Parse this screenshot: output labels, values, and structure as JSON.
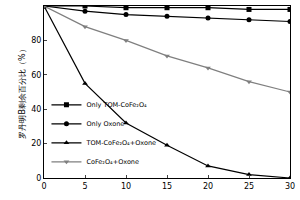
{
  "chart_data": {
    "type": "line",
    "y_label": "罗丹明B剩余百分比（%）",
    "x": [
      0,
      5,
      10,
      15,
      20,
      25,
      30
    ],
    "xlim": [
      0,
      30
    ],
    "xticks": [
      0,
      5,
      10,
      15,
      20,
      25,
      30
    ],
    "ylim": [
      0,
      100
    ],
    "yticks": [
      0,
      20,
      40,
      60,
      80
    ],
    "grid": false,
    "legend": "lower left",
    "series": [
      {
        "name": "Only TOM-CoFe₂O₄",
        "color": "#000000",
        "marker": "square",
        "line_style": "solid",
        "values": [
          100,
          100,
          99,
          99,
          99,
          98,
          98
        ]
      },
      {
        "name": "Only Oxone",
        "color": "#000000",
        "marker": "circle",
        "line_style": "solid",
        "values": [
          100,
          97,
          95,
          94,
          93,
          92,
          91
        ]
      },
      {
        "name": "TOM-CoFe₂O₄+Oxone",
        "color": "#000000",
        "marker": "triangle-up",
        "line_style": "solid",
        "values": [
          100,
          55,
          32,
          19,
          7,
          2,
          0
        ]
      },
      {
        "name": "CoFe₂O₄+Oxone",
        "color": "#7f7f7f",
        "marker": "triangle-down",
        "line_style": "solid",
        "values": [
          100,
          88,
          80,
          71,
          64,
          56,
          50
        ]
      }
    ]
  }
}
